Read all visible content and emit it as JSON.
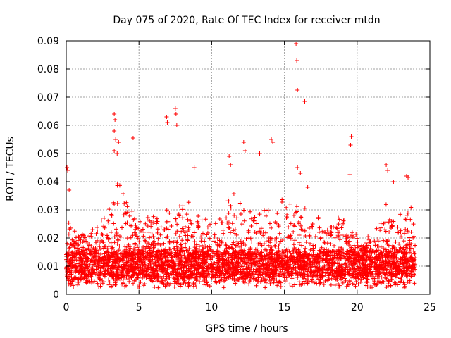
{
  "chart_data": {
    "type": "scatter",
    "title": "Day 075 of 2020, Rate Of TEC Index for receiver mtdn",
    "xlabel": "GPS time / hours",
    "ylabel": "ROTI / TECUs",
    "xlim": [
      0,
      25
    ],
    "ylim": [
      0,
      0.09
    ],
    "xticks": [
      "0",
      "5",
      "10",
      "15",
      "20",
      "25"
    ],
    "yticks": [
      "0",
      "0.01",
      "0.02",
      "0.03",
      "0.04",
      "0.05",
      "0.06",
      "0.07",
      "0.08",
      "0.09"
    ],
    "grid": true,
    "marker": "+",
    "color": "#ff0000",
    "outliers": [
      {
        "x": 0.05,
        "y": 0.045
      },
      {
        "x": 0.1,
        "y": 0.044
      },
      {
        "x": 0.2,
        "y": 0.037
      },
      {
        "x": 3.3,
        "y": 0.064
      },
      {
        "x": 3.35,
        "y": 0.062
      },
      {
        "x": 3.3,
        "y": 0.058
      },
      {
        "x": 3.4,
        "y": 0.055
      },
      {
        "x": 3.6,
        "y": 0.054
      },
      {
        "x": 3.3,
        "y": 0.051
      },
      {
        "x": 3.5,
        "y": 0.05
      },
      {
        "x": 4.6,
        "y": 0.0555
      },
      {
        "x": 6.9,
        "y": 0.063
      },
      {
        "x": 6.95,
        "y": 0.061
      },
      {
        "x": 7.5,
        "y": 0.066
      },
      {
        "x": 7.55,
        "y": 0.064
      },
      {
        "x": 7.6,
        "y": 0.06
      },
      {
        "x": 8.8,
        "y": 0.045
      },
      {
        "x": 11.3,
        "y": 0.046
      },
      {
        "x": 11.2,
        "y": 0.049
      },
      {
        "x": 12.2,
        "y": 0.054
      },
      {
        "x": 12.3,
        "y": 0.051
      },
      {
        "x": 13.3,
        "y": 0.05
      },
      {
        "x": 14.1,
        "y": 0.055
      },
      {
        "x": 14.2,
        "y": 0.054
      },
      {
        "x": 15.8,
        "y": 0.089
      },
      {
        "x": 15.85,
        "y": 0.083
      },
      {
        "x": 15.9,
        "y": 0.0725
      },
      {
        "x": 16.4,
        "y": 0.0685
      },
      {
        "x": 15.9,
        "y": 0.045
      },
      {
        "x": 16.1,
        "y": 0.043
      },
      {
        "x": 16.6,
        "y": 0.038
      },
      {
        "x": 19.6,
        "y": 0.056
      },
      {
        "x": 19.55,
        "y": 0.053
      },
      {
        "x": 19.5,
        "y": 0.0425
      },
      {
        "x": 22.0,
        "y": 0.046
      },
      {
        "x": 22.1,
        "y": 0.044
      },
      {
        "x": 22.5,
        "y": 0.04
      },
      {
        "x": 23.4,
        "y": 0.042
      },
      {
        "x": 23.5,
        "y": 0.0415
      }
    ],
    "density_profile": {
      "description": "approximate upper envelope of the dense point cloud",
      "hours": [
        0,
        1,
        2,
        3,
        3.5,
        4,
        5,
        6,
        7,
        8,
        9,
        10,
        11,
        11.5,
        12,
        13,
        14,
        15,
        16,
        17,
        18,
        19,
        20,
        20.5,
        21,
        22,
        23,
        24
      ],
      "upper_roti": [
        0.025,
        0.022,
        0.024,
        0.03,
        0.04,
        0.035,
        0.025,
        0.028,
        0.03,
        0.033,
        0.028,
        0.026,
        0.033,
        0.038,
        0.03,
        0.028,
        0.03,
        0.033,
        0.03,
        0.026,
        0.025,
        0.03,
        0.022,
        0.018,
        0.022,
        0.032,
        0.03,
        0.03
      ],
      "lower_roti": 0.003,
      "main_band": [
        0.006,
        0.015
      ]
    }
  }
}
